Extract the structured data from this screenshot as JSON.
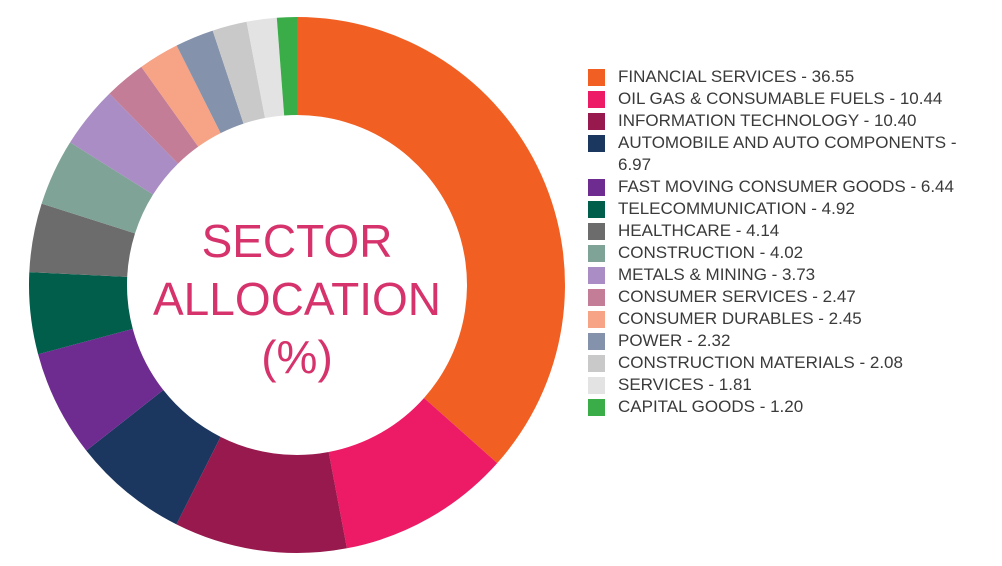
{
  "chart_data": {
    "type": "donut",
    "title": "SECTOR ALLOCATION (%)",
    "categories": [
      "FINANCIAL SERVICES - 36.55",
      "OIL GAS & CONSUMABLE FUELS - 10.44",
      "INFORMATION TECHNOLOGY - 10.40",
      "AUTOMOBILE AND AUTO COMPONENTS - 6.97",
      "FAST MOVING CONSUMER GOODS - 6.44",
      "TELECOMMUNICATION - 4.92",
      "HEALTHCARE - 4.14",
      "CONSTRUCTION - 4.02",
      "METALS & MINING - 3.73",
      "CONSUMER SERVICES - 2.47",
      "CONSUMER DURABLES - 2.45",
      "POWER - 2.32",
      "CONSTRUCTION MATERIALS - 2.08",
      "SERVICES - 1.81",
      "CAPITAL GOODS - 1.20"
    ],
    "values": [
      36.55,
      10.44,
      10.4,
      6.97,
      6.44,
      4.92,
      4.14,
      4.02,
      3.73,
      2.47,
      2.45,
      2.32,
      2.08,
      1.81,
      1.2
    ],
    "colors": [
      "#f15f22",
      "#ed1a65",
      "#97194e",
      "#1b365f",
      "#6e2c91",
      "#005e4b",
      "#6c6c6c",
      "#7fa396",
      "#a98dc4",
      "#c47d96",
      "#f6a386",
      "#8592ab",
      "#c9c9c9",
      "#e3e3e3",
      "#3aad48"
    ]
  }
}
